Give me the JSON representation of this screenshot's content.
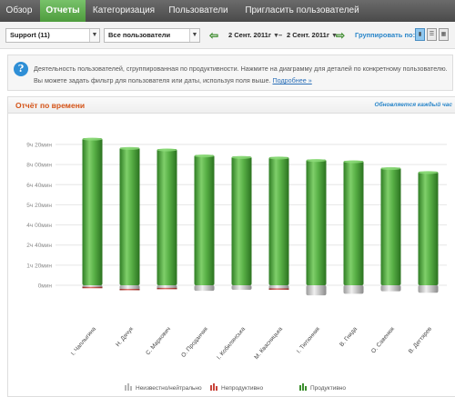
{
  "nav": {
    "tabs": [
      {
        "label": "Обзор",
        "active": false
      },
      {
        "label": "Отчеты",
        "active": true
      },
      {
        "label": "Категоризация",
        "active": false
      },
      {
        "label": "Пользователи",
        "active": false
      },
      {
        "label": "Пригласить пользователей",
        "active": false
      }
    ]
  },
  "filters": {
    "group_select": "Support (11)",
    "user_select": "Все пользователи",
    "date_from": "2 Сент. 2011г",
    "date_to": "2 Сент. 2011г",
    "group_by_label": "Группировать по:"
  },
  "info": {
    "text": "Деятельность пользователей, сгруппированная по продуктивности. Нажмите на диаграмму для деталей по конкретному пользователю. Вы можете задать фильтр для пользователя или даты, используя поля выше.",
    "more_link": "Подробнее »"
  },
  "panel": {
    "title": "Отчёт по времени",
    "update_note": "Обновляется каждый час"
  },
  "chart_data": {
    "type": "bar",
    "stacked": true,
    "y_ticks": [
      "0мин",
      "1ч 20мин",
      "2ч 40мин",
      "4ч 00мин",
      "5ч 20мин",
      "6ч 40мин",
      "8ч 00мин",
      "9ч 20мин"
    ],
    "ylim_minutes": [
      0,
      560
    ],
    "categories": [
      "I. Чаплыгина",
      "Н. Дячук",
      "С. Маркович",
      "О. Проданчик",
      "I. Кобилянська",
      "М. Квасницька",
      "I. Тютюнник",
      "В. Гнида",
      "О. Савенюк",
      "В. Дегтярев"
    ],
    "series": [
      {
        "name": "Продуктивно",
        "color": "#4aa33a",
        "values": [
          585,
          548,
          542,
          518,
          512,
          510,
          500,
          495,
          468,
          452
        ]
      },
      {
        "name": "Непродуктивно",
        "color": "#c9463d",
        "values": [
          3,
          3,
          3,
          0,
          0,
          1,
          0,
          0,
          0,
          0
        ]
      },
      {
        "name": "Неизвестно/нейтрально",
        "color": "#c8c8c8",
        "values": [
          10,
          18,
          14,
          22,
          18,
          16,
          40,
          34,
          24,
          30
        ]
      }
    ],
    "legend": [
      "Неизвестно/нейтрально",
      "Непродуктивно",
      "Продуктивно"
    ],
    "legend_position": "bottom"
  }
}
